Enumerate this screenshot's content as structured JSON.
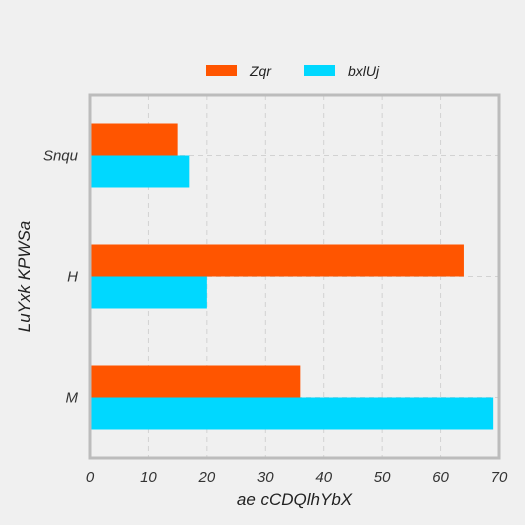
{
  "chart_data": {
    "type": "bar",
    "orientation": "horizontal",
    "categories": [
      "Snqu",
      "H",
      "M"
    ],
    "series": [
      {
        "name": "Zqr",
        "color": "#ff5500",
        "values": [
          15,
          64,
          36
        ]
      },
      {
        "name": "bxlUj",
        "color": "#00d8ff",
        "values": [
          17,
          20,
          69
        ]
      }
    ],
    "title": "",
    "xlabel": "ae cCDQlhYbX",
    "ylabel": "LuYxk KPWSa",
    "xlim": [
      0,
      70
    ],
    "xticks": [
      0,
      10,
      20,
      30,
      40,
      50,
      60,
      70
    ],
    "grid": true,
    "legend_position": "top"
  },
  "colors": {
    "background": "#f0f0f0",
    "axes_border": "#bcbcbc",
    "grid": "#d2d2d2"
  }
}
